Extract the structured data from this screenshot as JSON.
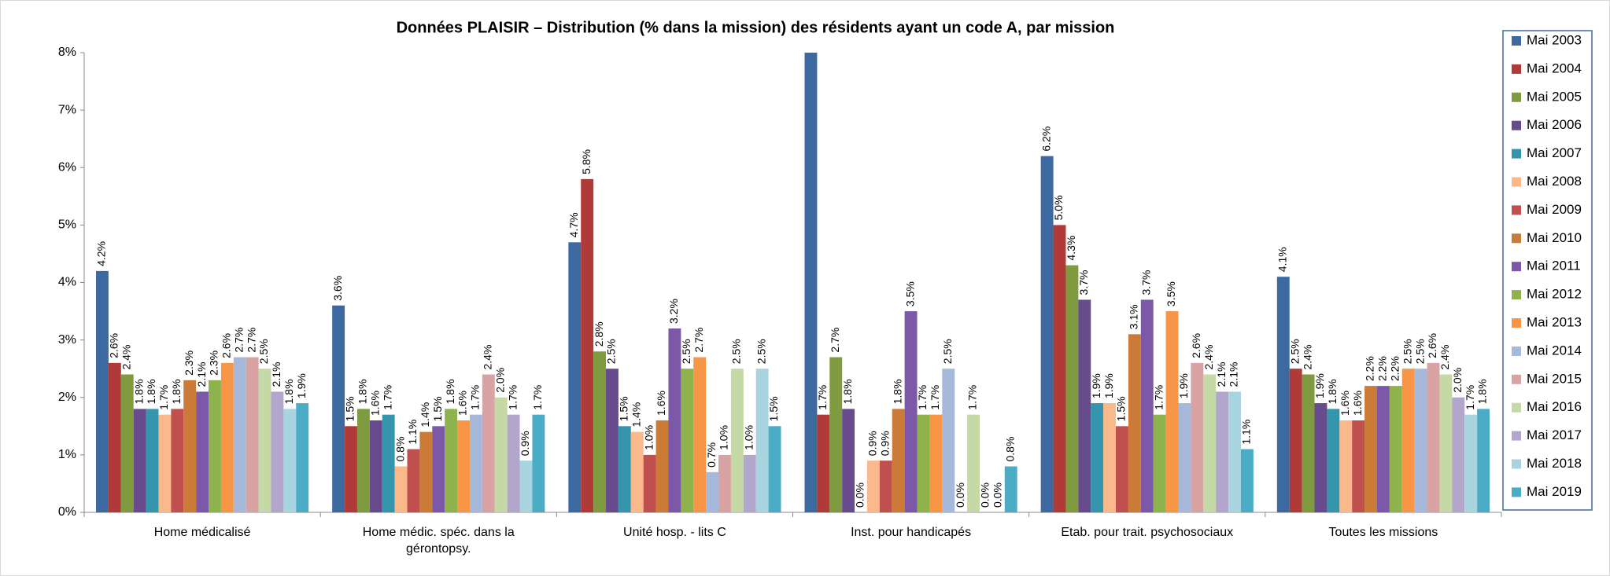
{
  "chart_data": {
    "type": "bar",
    "title": "Données PLAISIR – Distribution (% dans la mission) des résidents ayant un code A, par mission",
    "categories": [
      "Home médicalisé",
      "Home médic. spéc. dans la\ngérontopsy.",
      "Unité hosp. - lits C",
      "Inst. pour handicapés",
      "Etab. pour trait. psychosociaux",
      "Toutes les missions"
    ],
    "ylim": [
      0,
      8
    ],
    "yticks": [
      {
        "value": 0,
        "label": "0%"
      },
      {
        "value": 1,
        "label": "1%"
      },
      {
        "value": 2,
        "label": "2%"
      },
      {
        "value": 3,
        "label": "3%"
      },
      {
        "value": 4,
        "label": "4%"
      },
      {
        "value": 5,
        "label": "5%"
      },
      {
        "value": 6,
        "label": "6%"
      },
      {
        "value": 7,
        "label": "7%"
      },
      {
        "value": 8,
        "label": "8%"
      }
    ],
    "legend": "right",
    "series": [
      {
        "name": "Mai 2003",
        "color": "#3c69a0",
        "values": [
          4.2,
          3.6,
          4.7,
          8.0,
          6.2,
          4.1
        ],
        "value_labels": [
          "4.2%",
          "3.6%",
          "4.7%",
          null,
          "6.2%",
          "4.1%"
        ]
      },
      {
        "name": "Mai 2004",
        "color": "#b03a37",
        "values": [
          2.6,
          1.5,
          5.8,
          1.7,
          5.0,
          2.5
        ],
        "value_labels": [
          "2.6%",
          "1.5%",
          "5.8%",
          "1.7%",
          "5.0%",
          "2.5%"
        ]
      },
      {
        "name": "Mai 2005",
        "color": "#7f9a3f",
        "values": [
          2.4,
          1.8,
          2.8,
          2.7,
          4.3,
          2.4
        ],
        "value_labels": [
          "2.4%",
          "1.8%",
          "2.8%",
          "2.7%",
          "4.3%",
          "2.4%"
        ]
      },
      {
        "name": "Mai 2006",
        "color": "#674b8c",
        "values": [
          1.8,
          1.6,
          2.5,
          1.8,
          3.7,
          1.9
        ],
        "value_labels": [
          "1.8%",
          "1.6%",
          "2.5%",
          "1.8%",
          "3.7%",
          "1.9%"
        ]
      },
      {
        "name": "Mai 2007",
        "color": "#3595ad",
        "values": [
          1.8,
          1.7,
          1.5,
          0.0,
          1.9,
          1.8
        ],
        "value_labels": [
          "1.8%",
          "1.7%",
          "1.5%",
          "0.0%",
          "1.9%",
          "1.8%"
        ]
      },
      {
        "name": "Mai 2008",
        "color": "#f9b98a",
        "values": [
          1.7,
          0.8,
          1.4,
          0.9,
          1.9,
          1.6
        ],
        "value_labels": [
          "1.7%",
          "0.8%",
          "1.4%",
          "0.9%",
          "1.9%",
          "1.6%"
        ]
      },
      {
        "name": "Mai 2009",
        "color": "#c0504d",
        "values": [
          1.8,
          1.1,
          1.0,
          0.9,
          1.5,
          1.6
        ],
        "value_labels": [
          "1.8%",
          "1.1%",
          "1.0%",
          "0.9%",
          "1.5%",
          "1.6%"
        ]
      },
      {
        "name": "Mai 2010",
        "color": "#cc7a37",
        "values": [
          2.3,
          1.4,
          1.6,
          1.8,
          3.1,
          2.2
        ],
        "value_labels": [
          "2.3%",
          "1.4%",
          "1.6%",
          "1.8%",
          "3.1%",
          "2.2%"
        ]
      },
      {
        "name": "Mai 2011",
        "color": "#7b58a8",
        "values": [
          2.1,
          1.5,
          3.2,
          3.5,
          3.7,
          2.2
        ],
        "value_labels": [
          "2.1%",
          "1.5%",
          "3.2%",
          "3.5%",
          "3.7%",
          "2.2%"
        ]
      },
      {
        "name": "Mai 2012",
        "color": "#8fb34c",
        "values": [
          2.3,
          1.8,
          2.5,
          1.7,
          1.7,
          2.2
        ],
        "value_labels": [
          "2.3%",
          "1.8%",
          "2.5%",
          "1.7%",
          "1.7%",
          "2.2%"
        ]
      },
      {
        "name": "Mai 2013",
        "color": "#f79646",
        "values": [
          2.6,
          1.6,
          2.7,
          1.7,
          3.5,
          2.5
        ],
        "value_labels": [
          "2.6%",
          "1.6%",
          "2.7%",
          "1.7%",
          "3.5%",
          "2.5%"
        ]
      },
      {
        "name": "Mai 2014",
        "color": "#a6b9db",
        "values": [
          2.7,
          1.7,
          0.7,
          2.5,
          1.9,
          2.5
        ],
        "value_labels": [
          "2.7%",
          "1.7%",
          "0.7%",
          "2.5%",
          "1.9%",
          "2.5%"
        ]
      },
      {
        "name": "Mai 2015",
        "color": "#d9a3a3",
        "values": [
          2.7,
          2.4,
          1.0,
          0.0,
          2.6,
          2.6
        ],
        "value_labels": [
          "2.7%",
          "2.4%",
          "1.0%",
          "0.0%",
          "2.6%",
          "2.6%"
        ]
      },
      {
        "name": "Mai 2016",
        "color": "#c4d9a5",
        "values": [
          2.5,
          2.0,
          2.5,
          1.7,
          2.4,
          2.4
        ],
        "value_labels": [
          "2.5%",
          "2.0%",
          "2.5%",
          "1.7%",
          "2.4%",
          "2.4%"
        ]
      },
      {
        "name": "Mai 2017",
        "color": "#b3a6cd",
        "values": [
          2.1,
          1.7,
          1.0,
          0.0,
          2.1,
          2.0
        ],
        "value_labels": [
          "2.1%",
          "1.7%",
          "1.0%",
          "0.0%",
          "2.1%",
          "2.0%"
        ]
      },
      {
        "name": "Mai 2018",
        "color": "#a8d4e0",
        "values": [
          1.8,
          0.9,
          2.5,
          0.0,
          2.1,
          1.7
        ],
        "value_labels": [
          "1.8%",
          "0.9%",
          "2.5%",
          "0.0%",
          "2.1%",
          "1.7%"
        ]
      },
      {
        "name": "Mai 2019",
        "color": "#4bacc6",
        "values": [
          1.9,
          1.7,
          1.5,
          0.8,
          1.1,
          1.8
        ],
        "value_labels": [
          "1.9%",
          "1.7%",
          "1.5%",
          "0.8%",
          "1.1%",
          "1.8%"
        ]
      }
    ]
  }
}
